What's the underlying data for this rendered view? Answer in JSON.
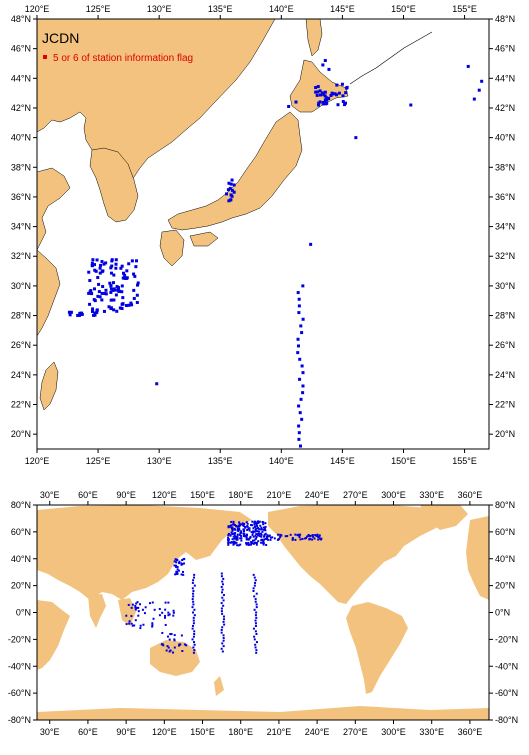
{
  "map_top": {
    "title": "JCDN",
    "legend": {
      "marker_color": "#e00000",
      "label": "5 or 6 of station information flag"
    },
    "lon_labels": [
      "120°E",
      "125°E",
      "130°E",
      "135°E",
      "140°E",
      "145°E",
      "150°E",
      "155°E"
    ],
    "lon_values": [
      120,
      125,
      130,
      135,
      140,
      145,
      150,
      155
    ],
    "lat_labels": [
      "20°N",
      "22°N",
      "24°N",
      "26°N",
      "28°N",
      "30°N",
      "32°N",
      "34°N",
      "36°N",
      "38°N",
      "40°N",
      "42°N",
      "44°N",
      "46°N",
      "48°N"
    ],
    "lat_values": [
      20,
      22,
      24,
      26,
      28,
      30,
      32,
      34,
      36,
      38,
      40,
      42,
      44,
      46,
      48
    ],
    "lon_range": [
      120,
      157
    ],
    "lat_range": [
      19,
      48
    ],
    "land_color": "#f2c27e",
    "station_color": "#0000e0"
  },
  "map_bottom": {
    "lon_labels": [
      "30°E",
      "60°E",
      "90°E",
      "120°E",
      "150°E",
      "180°E",
      "210°E",
      "240°E",
      "270°E",
      "300°E",
      "330°E",
      "360°E"
    ],
    "lon_values": [
      30,
      60,
      90,
      120,
      150,
      180,
      210,
      240,
      270,
      300,
      330,
      360
    ],
    "lat_labels": [
      "80°N",
      "60°N",
      "40°N",
      "20°N",
      "0°N",
      "-20°N",
      "-40°N",
      "-60°N",
      "-80°N"
    ],
    "lat_values": [
      80,
      60,
      40,
      20,
      0,
      -20,
      -40,
      -60,
      -80
    ],
    "lon_range": [
      20,
      375
    ],
    "lat_range": [
      -80,
      80
    ],
    "land_color": "#f2c27e",
    "station_color": "#0000e0"
  }
}
